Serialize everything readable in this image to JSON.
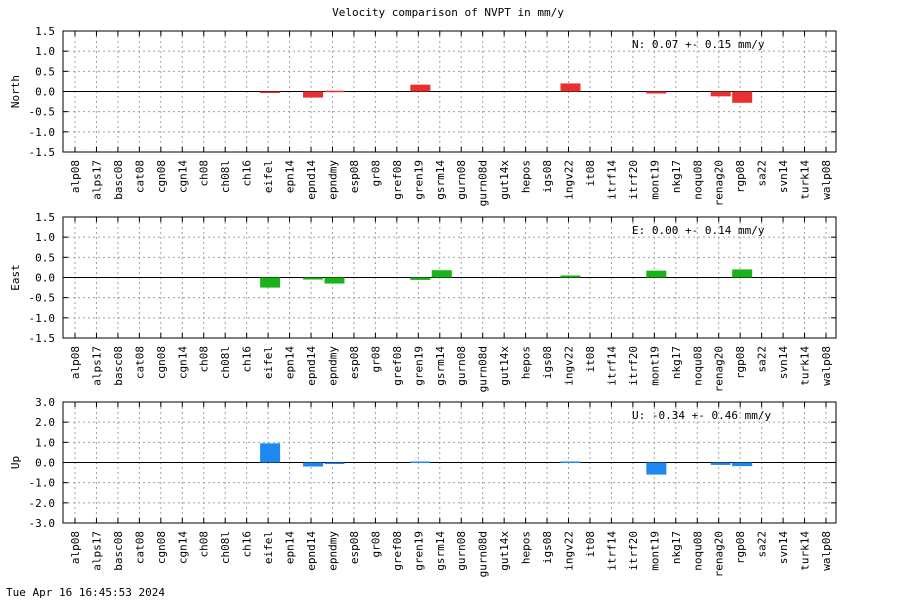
{
  "title": "Velocity comparison of NVPT in mm/y",
  "timestamp": "Tue Apr 16 16:45:53 2024",
  "categories": [
    "alp08",
    "alps17",
    "basc08",
    "cat08",
    "cgn08",
    "cgn14",
    "ch08",
    "ch08l",
    "ch16",
    "eifel",
    "epn14",
    "epnd14",
    "epndmy",
    "esp08",
    "gr08",
    "gref08",
    "gren19",
    "gsrm14",
    "gurn08",
    "gurn08d",
    "gut14x",
    "hepos",
    "igs08",
    "ingv22",
    "it08",
    "itrf14",
    "itrf20",
    "mont19",
    "nkg17",
    "noqu08",
    "renag20",
    "rgp08",
    "sa22",
    "svn14",
    "turk14",
    "walp08"
  ],
  "chart_data": [
    {
      "type": "bar",
      "ylabel": "North",
      "ylim": [
        -1.5,
        1.5
      ],
      "yticks": [
        "1.5",
        "1.0",
        "0.5",
        "0.0",
        "-0.5",
        "-1.0",
        "-1.5"
      ],
      "grid": true,
      "color": "#e83030",
      "annotation": "N:   0.07 +-  0.15 mm/y",
      "values": [
        0,
        0,
        0,
        0,
        0,
        0,
        0,
        0,
        0,
        -0.03,
        0,
        -0.15,
        0.02,
        0,
        0,
        0,
        0.17,
        0,
        0,
        0,
        0,
        0,
        0,
        0.2,
        0,
        0,
        0,
        -0.05,
        0,
        0,
        -0.12,
        -0.28,
        0,
        0,
        0,
        0
      ]
    },
    {
      "type": "bar",
      "ylabel": "East",
      "ylim": [
        -1.5,
        1.5
      ],
      "yticks": [
        "1.5",
        "1.0",
        "0.5",
        "0.0",
        "-0.5",
        "-1.0",
        "-1.5"
      ],
      "grid": true,
      "color": "#1ab41a",
      "annotation": "E:   0.00 +-  0.14 mm/y",
      "values": [
        0,
        0,
        0,
        0,
        0,
        0,
        0,
        0,
        0,
        -0.25,
        0,
        -0.05,
        -0.15,
        0,
        0,
        0,
        -0.06,
        0.18,
        0,
        0,
        0,
        0,
        0,
        0.05,
        0,
        0,
        0,
        0.17,
        0,
        0,
        0,
        0.2,
        0,
        0,
        0,
        0
      ]
    },
    {
      "type": "bar",
      "ylabel": "Up",
      "ylim": [
        -3.0,
        3.0
      ],
      "yticks": [
        "3.0",
        "2.0",
        "1.0",
        "0.0",
        "-1.0",
        "-2.0",
        "-3.0"
      ],
      "grid": true,
      "color": "#1e88f0",
      "annotation": "U:  -0.34 +-  0.46 mm/y",
      "values": [
        0,
        0,
        0,
        0,
        0,
        0,
        0,
        0,
        0,
        0.95,
        0,
        -0.2,
        -0.05,
        0,
        0,
        0,
        0.05,
        0,
        0,
        0,
        0,
        0,
        0,
        0.05,
        0,
        0,
        0,
        -0.6,
        0,
        0,
        -0.12,
        -0.18,
        0,
        0,
        0,
        0
      ]
    }
  ]
}
